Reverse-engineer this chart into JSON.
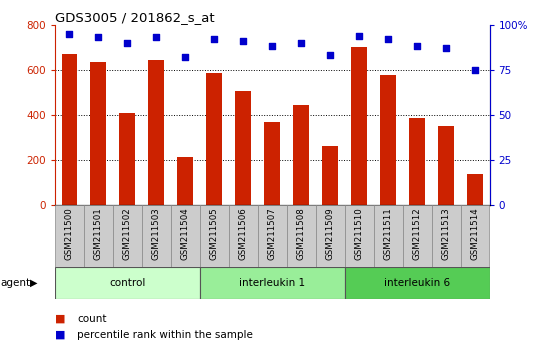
{
  "title": "GDS3005 / 201862_s_at",
  "samples": [
    "GSM211500",
    "GSM211501",
    "GSM211502",
    "GSM211503",
    "GSM211504",
    "GSM211505",
    "GSM211506",
    "GSM211507",
    "GSM211508",
    "GSM211509",
    "GSM211510",
    "GSM211511",
    "GSM211512",
    "GSM211513",
    "GSM211514"
  ],
  "counts": [
    670,
    635,
    410,
    645,
    215,
    585,
    505,
    370,
    445,
    262,
    700,
    578,
    385,
    350,
    140
  ],
  "percentiles": [
    95,
    93,
    90,
    93,
    82,
    92,
    91,
    88,
    90,
    83,
    94,
    92,
    88,
    87,
    75
  ],
  "groups": [
    {
      "label": "control",
      "start": 0,
      "end": 5
    },
    {
      "label": "interleukin 1",
      "start": 5,
      "end": 10
    },
    {
      "label": "interleukin 6",
      "start": 10,
      "end": 15
    }
  ],
  "group_colors": [
    "#ccffcc",
    "#99ee99",
    "#55cc55"
  ],
  "bar_color": "#cc2200",
  "dot_color": "#0000cc",
  "left_ylim": [
    0,
    800
  ],
  "right_ylim": [
    0,
    100
  ],
  "left_yticks": [
    0,
    200,
    400,
    600,
    800
  ],
  "right_yticks": [
    0,
    25,
    50,
    75,
    100
  ],
  "right_yticklabels": [
    "0",
    "25",
    "50",
    "75",
    "100%"
  ],
  "bg_color": "#ffffff",
  "tick_label_color_left": "#cc2200",
  "tick_label_color_right": "#0000cc",
  "xtick_bg": "#cccccc"
}
